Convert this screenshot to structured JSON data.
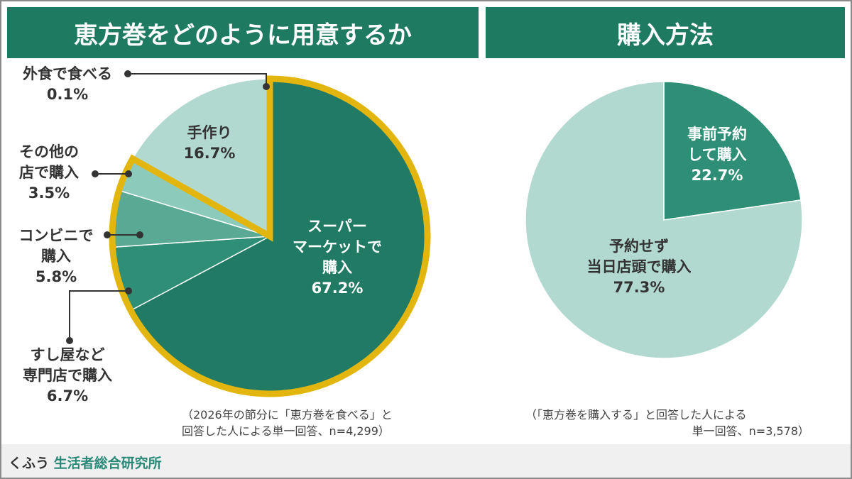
{
  "colors": {
    "header": "#1f7a62",
    "highlight": "#e3b60f",
    "footer_brand": "#2a8a78"
  },
  "chart_data": [
    {
      "type": "pie",
      "title": "恵方巻をどのように用意するか",
      "slices": [
        {
          "label": "スーパーマーケットで購入",
          "value": 67.2,
          "color": "#217a63"
        },
        {
          "label": "すし屋など専門店で購入",
          "value": 6.7,
          "color": "#2e8f76"
        },
        {
          "label": "コンビニで購入",
          "value": 5.8,
          "color": "#5aa994"
        },
        {
          "label": "その他の店で購入",
          "value": 3.5,
          "color": "#8ccbbb"
        },
        {
          "label": "手作り",
          "value": 16.7,
          "color": "#b2d9cf"
        },
        {
          "label": "外食で食べる",
          "value": 0.1,
          "color": "#b2d9cf"
        }
      ],
      "highlighted": [
        "スーパーマーケットで購入",
        "すし屋など専門店で購入",
        "コンビニで購入",
        "その他の店で購入"
      ],
      "note": [
        "（2026年の節分に「恵方巻を食べる」と",
        "回答した人による単一回答、n=4,299）"
      ]
    },
    {
      "type": "pie",
      "title": "購入方法",
      "slices": [
        {
          "label": "事前予約して購入",
          "value": 22.7,
          "color": "#2e8f76"
        },
        {
          "label": "予約せず当日店頭で購入",
          "value": 77.3,
          "color": "#b2d9cf"
        }
      ],
      "note": [
        "（「恵方巻を購入する」と回答した人による",
        "単一回答、n=3,578）"
      ]
    }
  ],
  "labels": {
    "super": [
      "スーパー",
      "マーケットで",
      "購入",
      "67.2%"
    ],
    "sushi": [
      "すし屋など",
      "専門店で購入",
      "6.7%"
    ],
    "conv": [
      "コンビニで",
      "購入",
      "5.8%"
    ],
    "other": [
      "その他の",
      "店で購入",
      "3.5%"
    ],
    "hand": [
      "手作り",
      "16.7%"
    ],
    "eatout": [
      "外食で食べる",
      "0.1%"
    ],
    "reserve": [
      "事前予約",
      "して購入",
      "22.7%"
    ],
    "noreserve": [
      "予約せず",
      "当日店頭で購入",
      "77.3%"
    ]
  },
  "footer": {
    "brand_a": "くふう",
    "brand_b": "生活者総合研究所"
  }
}
